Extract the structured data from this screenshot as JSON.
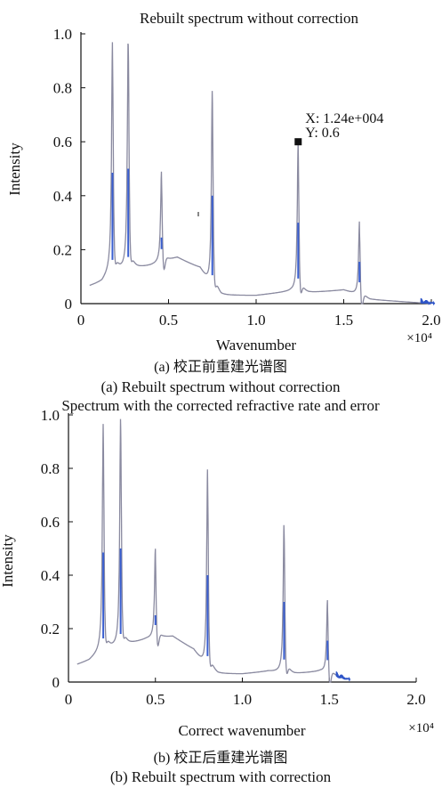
{
  "chart_data": [
    {
      "type": "line",
      "title": "Rebuilt spectrum without correction",
      "xlabel": "Wavenumber",
      "ylabel": "Intensity",
      "xlim": [
        0,
        2.0
      ],
      "ylim": [
        0,
        1.0
      ],
      "x_multiplier": "×10⁴",
      "xticks": [
        "0",
        "0.5",
        "1.0",
        "1.5",
        "2.0"
      ],
      "yticks": [
        "0",
        "0.2",
        "0.4",
        "0.6",
        "0.8",
        "1.0"
      ],
      "caption_cn": "(a) 校正前重建光谱图",
      "caption_en": "(a) Rebuilt spectrum without correction",
      "datatip": {
        "x": 1.24,
        "y": 0.6,
        "x_label": "X: 1.24e+004",
        "y_label": "Y: 0.6"
      },
      "baseline": [
        [
          0.05,
          0.065
        ],
        [
          0.12,
          0.08
        ],
        [
          0.16,
          0.11
        ],
        [
          0.25,
          0.12
        ],
        [
          0.4,
          0.14
        ],
        [
          0.55,
          0.17
        ],
        [
          0.68,
          0.13
        ],
        [
          0.74,
          0.06
        ],
        [
          0.8,
          0.03
        ],
        [
          1.0,
          0.03
        ],
        [
          1.2,
          0.045
        ],
        [
          1.3,
          0.04
        ],
        [
          1.5,
          0.05
        ],
        [
          1.65,
          0.015
        ],
        [
          2.0,
          0.0
        ]
      ],
      "peaks": [
        {
          "x": 0.18,
          "y": 0.97
        },
        {
          "x": 0.27,
          "y": 1.0
        },
        {
          "x": 0.46,
          "y": 0.49
        },
        {
          "x": 0.75,
          "y": 0.8
        },
        {
          "x": 1.24,
          "y": 0.6
        },
        {
          "x": 1.59,
          "y": 0.31
        }
      ]
    },
    {
      "type": "line",
      "title": "Spectrum with the corrected refractive rate and error",
      "xlabel": "Correct wavenumber",
      "ylabel": "Intensity",
      "xlim": [
        0,
        2.0
      ],
      "ylim": [
        0,
        1.0
      ],
      "x_multiplier": "×10⁴",
      "xticks": [
        "0",
        "0.5",
        "1.0",
        "1.5",
        "2.0"
      ],
      "yticks": [
        "0",
        "0.2",
        "0.4",
        "0.6",
        "0.8",
        "1.0"
      ],
      "caption_cn": "(b) 校正后重建光谱图",
      "caption_en": "(b) Rebuilt spectrum with correction",
      "baseline": [
        [
          0.05,
          0.065
        ],
        [
          0.12,
          0.08
        ],
        [
          0.18,
          0.11
        ],
        [
          0.3,
          0.13
        ],
        [
          0.45,
          0.16
        ],
        [
          0.6,
          0.17
        ],
        [
          0.72,
          0.12
        ],
        [
          0.79,
          0.05
        ],
        [
          0.86,
          0.03
        ],
        [
          1.0,
          0.03
        ],
        [
          1.15,
          0.04
        ],
        [
          1.3,
          0.03
        ],
        [
          1.45,
          0.04
        ],
        [
          1.6,
          0.01
        ]
      ],
      "peaks": [
        {
          "x": 0.2,
          "y": 0.97
        },
        {
          "x": 0.3,
          "y": 1.0
        },
        {
          "x": 0.5,
          "y": 0.5
        },
        {
          "x": 0.8,
          "y": 0.8
        },
        {
          "x": 1.24,
          "y": 0.6
        },
        {
          "x": 1.49,
          "y": 0.31
        }
      ]
    }
  ]
}
